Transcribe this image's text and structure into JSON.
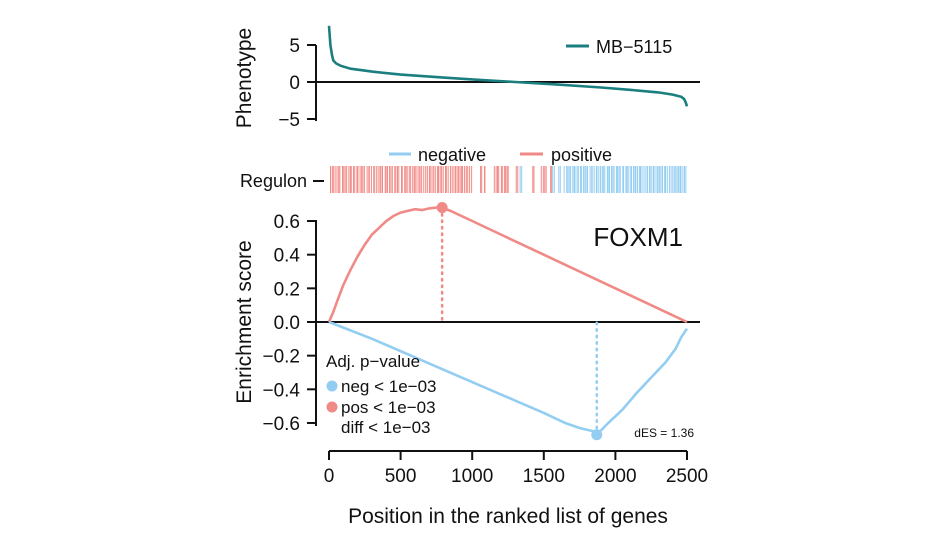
{
  "chart_data": [
    {
      "type": "line",
      "panel": "phenotype",
      "ylabel": "Phenotype",
      "ylim": [
        -5,
        8
      ],
      "yticks": [
        5,
        0,
        -5
      ],
      "series": [
        {
          "name": "MB−5115",
          "color": "#1b7f7f",
          "x": [
            0,
            10,
            20,
            30,
            50,
            80,
            150,
            300,
            500,
            800,
            1000,
            1300,
            1600,
            1900,
            2100,
            2300,
            2400,
            2460,
            2480,
            2490,
            2500
          ],
          "values": [
            7.6,
            5.0,
            3.7,
            2.9,
            2.5,
            2.2,
            1.8,
            1.4,
            1.0,
            0.6,
            0.35,
            0.0,
            -0.35,
            -0.75,
            -1.05,
            -1.4,
            -1.7,
            -2.0,
            -2.3,
            -2.7,
            -3.3
          ]
        }
      ]
    },
    {
      "type": "line",
      "panel": "enrichment",
      "title": "FOXM1",
      "xlabel": "Position in the ranked list of genes",
      "ylabel": "Enrichment score",
      "xlim": [
        0,
        2500
      ],
      "ylim": [
        -0.7,
        0.7
      ],
      "xticks": [
        0,
        500,
        1000,
        1500,
        2000,
        2500
      ],
      "yticks": [
        0.6,
        0.4,
        0.2,
        0.0,
        -0.2,
        -0.4,
        -0.6
      ],
      "series": [
        {
          "name": "positive",
          "color": "#f08a86",
          "x": [
            0,
            30,
            60,
            100,
            150,
            200,
            250,
            300,
            350,
            400,
            450,
            500,
            550,
            600,
            650,
            700,
            750,
            790,
            850,
            1000,
            1200,
            1500,
            1800,
            2100,
            2400,
            2500
          ],
          "values": [
            0.0,
            0.06,
            0.13,
            0.22,
            0.31,
            0.39,
            0.46,
            0.52,
            0.56,
            0.6,
            0.63,
            0.65,
            0.66,
            0.67,
            0.665,
            0.675,
            0.68,
            0.68,
            0.66,
            0.6,
            0.52,
            0.4,
            0.28,
            0.16,
            0.04,
            0.0
          ]
        },
        {
          "name": "negative",
          "color": "#93cdf2",
          "x": [
            0,
            300,
            600,
            900,
            1200,
            1500,
            1650,
            1750,
            1850,
            1870,
            1950,
            2050,
            2150,
            2250,
            2350,
            2420,
            2460,
            2500
          ],
          "values": [
            0.0,
            -0.1,
            -0.21,
            -0.32,
            -0.43,
            -0.54,
            -0.6,
            -0.63,
            -0.65,
            -0.67,
            -0.6,
            -0.52,
            -0.42,
            -0.33,
            -0.24,
            -0.16,
            -0.09,
            -0.04
          ]
        }
      ],
      "peaks": [
        {
          "series": "positive",
          "x": 790,
          "value": 0.68
        },
        {
          "series": "negative",
          "x": 1870,
          "value": -0.67
        }
      ],
      "annotation": "dES = 1.36",
      "stats_legend": {
        "title": "Adj. p−value",
        "entries": [
          {
            "text": "neg < 1e−03",
            "color": "#93cdf2"
          },
          {
            "text": "pos < 1e−03",
            "color": "#f08a86"
          },
          {
            "text": "diff < 1e−03",
            "color": ""
          }
        ]
      }
    }
  ],
  "regulon": {
    "label": "Regulon",
    "legend": [
      {
        "name": "negative",
        "color": "#93cdf2"
      },
      {
        "name": "positive",
        "color": "#f08a86"
      }
    ],
    "positive_ranges": [
      [
        5,
        1000
      ],
      [
        1050,
        1100
      ],
      [
        1150,
        1260
      ],
      [
        1300,
        1320
      ],
      [
        1420,
        1440
      ],
      [
        1480,
        1520
      ],
      [
        1540,
        1560
      ]
    ],
    "negative_ranges": [
      [
        1330,
        1350
      ],
      [
        1560,
        1580
      ],
      [
        1600,
        1620
      ],
      [
        1640,
        2500
      ]
    ],
    "positive_count": 110,
    "negative_count": 85
  }
}
